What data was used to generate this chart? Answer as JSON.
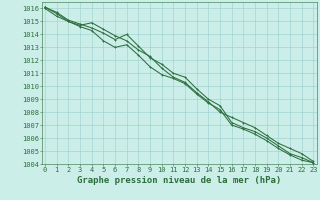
{
  "title": "Graphe pression niveau de la mer (hPa)",
  "background_color": "#cceee8",
  "plot_bg_color": "#cceee8",
  "grid_color": "#99cccc",
  "line_color": "#2d6e3e",
  "marker_color": "#2d6e3e",
  "ylim": [
    1004,
    1016.5
  ],
  "xlim": [
    -0.3,
    23.3
  ],
  "yticks": [
    1004,
    1005,
    1006,
    1007,
    1008,
    1009,
    1010,
    1011,
    1012,
    1013,
    1014,
    1015,
    1016
  ],
  "xticks": [
    0,
    1,
    2,
    3,
    4,
    5,
    6,
    7,
    8,
    9,
    10,
    11,
    12,
    13,
    14,
    15,
    16,
    17,
    18,
    19,
    20,
    21,
    22,
    23
  ],
  "series": [
    {
      "x": [
        0,
        1,
        2,
        3,
        4,
        5,
        6,
        7,
        8,
        9,
        10,
        11,
        12,
        13,
        14,
        15,
        16,
        17,
        18,
        19,
        20,
        21,
        22,
        23
      ],
      "y": [
        1016.1,
        1015.7,
        1015.1,
        1014.8,
        1014.5,
        1014.1,
        1013.6,
        1014.0,
        1013.1,
        1012.2,
        1011.7,
        1011.0,
        1010.7,
        1009.8,
        1009.0,
        1008.5,
        1007.2,
        1006.8,
        1006.5,
        1006.0,
        1005.4,
        1004.8,
        1004.5,
        1004.1
      ]
    },
    {
      "x": [
        0,
        1,
        2,
        3,
        4,
        5,
        6,
        7,
        8,
        9,
        10,
        11,
        12,
        13,
        14,
        15,
        16,
        17,
        18,
        19,
        20,
        21,
        22,
        23
      ],
      "y": [
        1016.1,
        1015.6,
        1015.0,
        1014.6,
        1014.3,
        1013.5,
        1013.0,
        1013.2,
        1012.4,
        1011.5,
        1010.9,
        1010.6,
        1010.2,
        1009.4,
        1008.7,
        1008.2,
        1007.0,
        1006.7,
        1006.3,
        1005.8,
        1005.2,
        1004.7,
        1004.3,
        1004.1
      ]
    },
    {
      "x": [
        0,
        1,
        2,
        3,
        4,
        5,
        6,
        7,
        8,
        9,
        10,
        11,
        12,
        13,
        14,
        15,
        16,
        17,
        18,
        19,
        20,
        21,
        22,
        23
      ],
      "y": [
        1016.0,
        1015.4,
        1015.0,
        1014.7,
        1014.9,
        1014.4,
        1013.9,
        1013.5,
        1012.8,
        1012.3,
        1011.4,
        1010.7,
        1010.3,
        1009.5,
        1008.8,
        1008.0,
        1007.6,
        1007.2,
        1006.8,
        1006.2,
        1005.6,
        1005.2,
        1004.8,
        1004.2
      ]
    }
  ],
  "title_color": "#2d6e3e",
  "tick_color": "#2d6e3e",
  "tick_fontsize": 5.0,
  "title_fontsize": 6.5,
  "title_bold": true,
  "linewidth": 0.75,
  "markersize": 2.0,
  "markeredgewidth": 0.7
}
